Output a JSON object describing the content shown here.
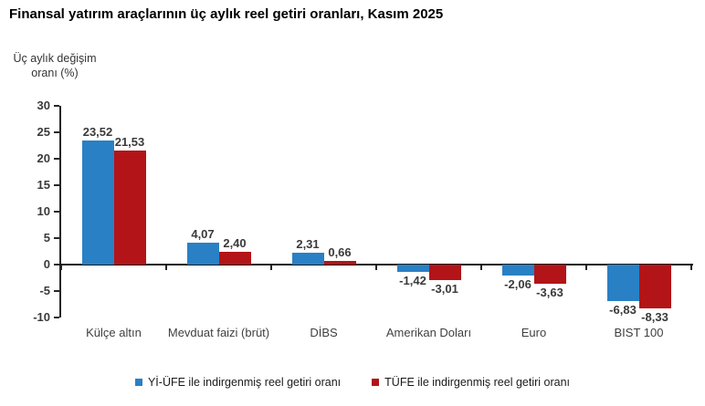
{
  "chart_data": {
    "type": "bar",
    "title": "Finansal yatırım araçlarının üç aylık reel getiri oranları, Kasım 2025",
    "ylabel": "Üç aylık değişim oranı (%)",
    "xlabel": "",
    "categories": [
      "Külçe altın",
      "Mevduat faizi (brüt)",
      "DİBS",
      "Amerikan Doları",
      "Euro",
      "BIST 100"
    ],
    "series": [
      {
        "name": "Yİ-ÜFE ile indirgenmiş reel getiri oranı",
        "color": "#2A80C4",
        "values": [
          23.52,
          4.07,
          2.31,
          -1.42,
          -2.06,
          -6.83
        ],
        "labels": [
          "23,52",
          "4,07",
          "2,31",
          "-1,42",
          "-2,06",
          "-6,83"
        ]
      },
      {
        "name": "TÜFE ile indirgenmiş reel getiri oranı",
        "color": "#B21418",
        "values": [
          21.53,
          2.4,
          0.66,
          -3.01,
          -3.63,
          -8.33
        ],
        "labels": [
          "21,53",
          "2,40",
          "0,66",
          "-3,01",
          "-3,63",
          "-8,33"
        ]
      }
    ],
    "ylim": [
      -10,
      30
    ],
    "ytick_step": 5,
    "yticks": [
      30,
      25,
      20,
      15,
      10,
      5,
      0,
      -5,
      -10
    ],
    "grid": false,
    "legend_position": "bottom"
  }
}
